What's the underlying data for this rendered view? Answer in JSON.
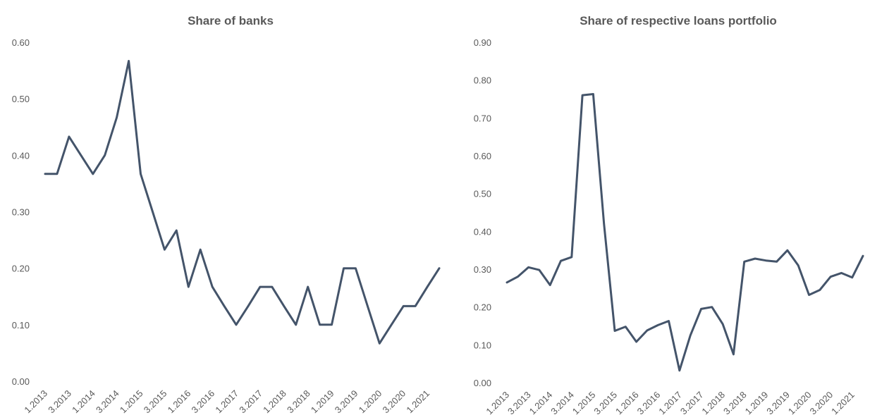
{
  "chart_data": [
    {
      "type": "line",
      "title": "Share of banks",
      "xlabel": "",
      "ylabel": "",
      "ylim": [
        0,
        0.6
      ],
      "yticks": [
        "0.00",
        "0.10",
        "0.20",
        "0.30",
        "0.40",
        "0.50",
        "0.60"
      ],
      "x": [
        "1.2013",
        "2.2013",
        "3.2013",
        "4.2013",
        "1.2014",
        "2.2014",
        "3.2014",
        "4.2014",
        "1.2015",
        "2.2015",
        "3.2015",
        "4.2015",
        "1.2016",
        "2.2016",
        "3.2016",
        "4.2016",
        "1.2017",
        "2.2017",
        "3.2017",
        "4.2017",
        "1.2018",
        "2.2018",
        "3.2018",
        "4.2018",
        "1.2019",
        "2.2019",
        "3.2019",
        "4.2019",
        "1.2020",
        "2.2020",
        "3.2020",
        "4.2020",
        "1.2021",
        "2.2021"
      ],
      "xtick_labels": [
        "1.2013",
        "3.2013",
        "1.2014",
        "3.2014",
        "1.2015",
        "3.2015",
        "1.2016",
        "3.2016",
        "1.2017",
        "3.2017",
        "1.2018",
        "3.2018",
        "1.2019",
        "3.2019",
        "1.2020",
        "3.2020",
        "1.2021"
      ],
      "values": [
        0.367,
        0.367,
        0.433,
        0.4,
        0.367,
        0.4,
        0.467,
        0.567,
        0.367,
        0.3,
        0.233,
        0.267,
        0.167,
        0.233,
        0.167,
        0.133,
        0.1,
        0.133,
        0.167,
        0.167,
        0.133,
        0.1,
        0.167,
        0.1,
        0.1,
        0.2,
        0.2,
        0.133,
        0.067,
        0.1,
        0.133,
        0.133,
        0.167,
        0.2
      ],
      "grid": false,
      "line_color": "#44546a"
    },
    {
      "type": "line",
      "title": "Share of respective loans portfolio",
      "xlabel": "",
      "ylabel": "",
      "ylim": [
        0,
        0.9
      ],
      "yticks": [
        "0.00",
        "0.10",
        "0.20",
        "0.30",
        "0.40",
        "0.50",
        "0.60",
        "0.70",
        "0.80",
        "0.90"
      ],
      "x": [
        "1.2013",
        "2.2013",
        "3.2013",
        "4.2013",
        "1.2014",
        "2.2014",
        "3.2014",
        "4.2014",
        "1.2015",
        "2.2015",
        "3.2015",
        "4.2015",
        "1.2016",
        "2.2016",
        "3.2016",
        "4.2016",
        "1.2017",
        "2.2017",
        "3.2017",
        "4.2017",
        "1.2018",
        "2.2018",
        "3.2018",
        "4.2018",
        "1.2019",
        "2.2019",
        "3.2019",
        "4.2019",
        "1.2020",
        "2.2020",
        "3.2020",
        "4.2020",
        "1.2021",
        "2.2021"
      ],
      "xtick_labels": [
        "1.2013",
        "3.2013",
        "1.2014",
        "3.2014",
        "1.2015",
        "3.2015",
        "1.2016",
        "3.2016",
        "1.2017",
        "3.2017",
        "1.2018",
        "3.2018",
        "1.2019",
        "3.2019",
        "1.2020",
        "3.2020",
        "1.2021"
      ],
      "values": [
        0.265,
        0.28,
        0.305,
        0.298,
        0.258,
        0.322,
        0.332,
        0.76,
        0.763,
        0.42,
        0.137,
        0.148,
        0.108,
        0.138,
        0.152,
        0.163,
        0.032,
        0.125,
        0.195,
        0.2,
        0.155,
        0.075,
        0.32,
        0.328,
        0.323,
        0.32,
        0.35,
        0.31,
        0.232,
        0.245,
        0.28,
        0.29,
        0.278,
        0.335
      ],
      "grid": false,
      "line_color": "#44546a"
    }
  ]
}
